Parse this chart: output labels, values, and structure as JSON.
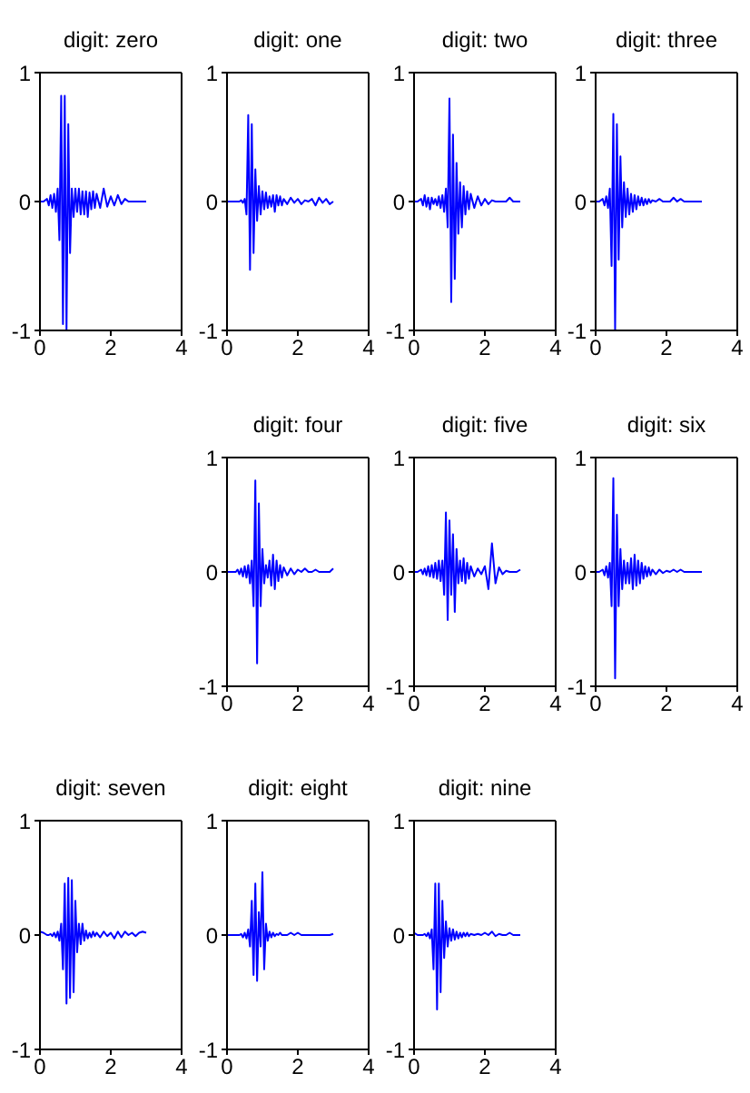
{
  "chart_data": [
    {
      "type": "line",
      "title": "digit: zero",
      "color": "#0000ff",
      "marker": "none",
      "xlim": [
        0,
        4
      ],
      "xticks": [
        0,
        2,
        4
      ],
      "ylim": [
        -1,
        1
      ],
      "yticks": [
        -1,
        0,
        1
      ],
      "x": [
        0,
        0.1,
        0.2,
        0.25,
        0.3,
        0.35,
        0.4,
        0.45,
        0.5,
        0.55,
        0.6,
        0.65,
        0.7,
        0.75,
        0.8,
        0.85,
        0.9,
        0.95,
        1.0,
        1.05,
        1.1,
        1.15,
        1.2,
        1.25,
        1.3,
        1.35,
        1.4,
        1.45,
        1.5,
        1.55,
        1.6,
        1.7,
        1.8,
        1.9,
        2.0,
        2.1,
        2.2,
        2.3,
        2.4,
        2.5,
        2.6,
        2.7,
        2.8,
        2.9,
        3.0
      ],
      "values": [
        0,
        0,
        0.02,
        -0.03,
        0.05,
        -0.05,
        0.06,
        -0.08,
        0.1,
        -0.3,
        0.82,
        -0.95,
        0.82,
        -1,
        0.6,
        -0.4,
        0.1,
        -0.12,
        0.1,
        -0.08,
        0.1,
        -0.1,
        0.08,
        -0.1,
        0.08,
        -0.12,
        0.07,
        -0.06,
        0.08,
        -0.05,
        0.06,
        -0.05,
        0.1,
        -0.04,
        0.04,
        -0.03,
        0.05,
        -0.02,
        0.02,
        0,
        0,
        0,
        0,
        0,
        0
      ]
    },
    {
      "type": "line",
      "title": "digit: one",
      "color": "#0000ff",
      "marker": "none",
      "xlim": [
        0,
        4
      ],
      "xticks": [
        0,
        2,
        4
      ],
      "ylim": [
        -1,
        1
      ],
      "yticks": [
        -1,
        0,
        1
      ],
      "x": [
        0,
        0.1,
        0.2,
        0.25,
        0.3,
        0.35,
        0.4,
        0.45,
        0.5,
        0.55,
        0.6,
        0.65,
        0.7,
        0.75,
        0.8,
        0.85,
        0.9,
        0.95,
        1.0,
        1.05,
        1.1,
        1.15,
        1.2,
        1.25,
        1.3,
        1.35,
        1.4,
        1.45,
        1.5,
        1.55,
        1.6,
        1.7,
        1.8,
        1.9,
        2.0,
        2.1,
        2.2,
        2.3,
        2.4,
        2.5,
        2.6,
        2.7,
        2.8,
        2.9,
        3.0
      ],
      "values": [
        0,
        0,
        0,
        0,
        0,
        0,
        0.01,
        -0.01,
        0.02,
        -0.1,
        0.67,
        -0.53,
        0.6,
        -0.4,
        0.25,
        -0.15,
        0.12,
        -0.1,
        0.08,
        -0.06,
        0.07,
        -0.05,
        0.04,
        -0.04,
        0.05,
        -0.08,
        0.05,
        -0.03,
        0.04,
        -0.03,
        0.02,
        -0.02,
        0.03,
        -0.01,
        0.02,
        -0.02,
        0.01,
        0,
        0.02,
        -0.03,
        0.03,
        -0.01,
        0.02,
        -0.02,
        0
      ]
    },
    {
      "type": "line",
      "title": "digit: two",
      "color": "#0000ff",
      "marker": "none",
      "xlim": [
        0,
        4
      ],
      "xticks": [
        0,
        2,
        4
      ],
      "ylim": [
        -1,
        1
      ],
      "yticks": [
        -1,
        0,
        1
      ],
      "x": [
        0,
        0.1,
        0.2,
        0.25,
        0.3,
        0.35,
        0.4,
        0.45,
        0.5,
        0.55,
        0.6,
        0.65,
        0.7,
        0.75,
        0.8,
        0.85,
        0.9,
        0.95,
        1.0,
        1.05,
        1.1,
        1.15,
        1.2,
        1.25,
        1.3,
        1.35,
        1.4,
        1.45,
        1.5,
        1.55,
        1.6,
        1.7,
        1.8,
        1.9,
        2.0,
        2.1,
        2.2,
        2.3,
        2.4,
        2.5,
        2.6,
        2.7,
        2.8,
        2.9,
        3.0
      ],
      "values": [
        0,
        0,
        0.02,
        -0.03,
        0.05,
        -0.04,
        0.03,
        -0.06,
        0.03,
        -0.02,
        0.02,
        -0.03,
        0.04,
        -0.05,
        0.05,
        -0.08,
        0.1,
        -0.2,
        0.8,
        -0.78,
        0.52,
        -0.6,
        0.3,
        -0.25,
        0.15,
        -0.2,
        0.12,
        -0.1,
        0.08,
        -0.06,
        0.06,
        -0.05,
        0.04,
        -0.03,
        0.02,
        -0.02,
        0.01,
        0,
        0,
        0,
        0,
        0.03,
        0,
        0,
        0
      ]
    },
    {
      "type": "line",
      "title": "digit: three",
      "color": "#0000ff",
      "marker": "none",
      "xlim": [
        0,
        4
      ],
      "xticks": [
        0,
        2,
        4
      ],
      "ylim": [
        -1,
        1
      ],
      "yticks": [
        -1,
        0,
        1
      ],
      "x": [
        0,
        0.1,
        0.2,
        0.25,
        0.3,
        0.35,
        0.4,
        0.45,
        0.5,
        0.55,
        0.6,
        0.65,
        0.7,
        0.75,
        0.8,
        0.85,
        0.9,
        0.95,
        1.0,
        1.05,
        1.1,
        1.15,
        1.2,
        1.25,
        1.3,
        1.35,
        1.4,
        1.45,
        1.5,
        1.55,
        1.6,
        1.7,
        1.8,
        1.9,
        2.0,
        2.1,
        2.2,
        2.3,
        2.4,
        2.5,
        2.6,
        2.7,
        2.8,
        2.9,
        3.0
      ],
      "values": [
        0,
        0,
        0.02,
        -0.03,
        0.04,
        -0.05,
        0.1,
        -0.5,
        0.68,
        -1,
        0.6,
        -0.45,
        0.35,
        -0.2,
        0.15,
        -0.12,
        0.1,
        -0.1,
        0.06,
        -0.08,
        0.05,
        -0.06,
        0.04,
        -0.03,
        0.03,
        -0.03,
        0.02,
        -0.02,
        0.02,
        -0.01,
        0.01,
        0,
        0.02,
        0,
        0,
        0,
        0.03,
        0,
        0.02,
        0,
        0,
        0,
        0,
        0,
        0
      ]
    },
    {
      "type": "line",
      "title": "digit: four",
      "color": "#0000ff",
      "marker": "none",
      "xlim": [
        0,
        4
      ],
      "xticks": [
        0,
        2,
        4
      ],
      "ylim": [
        -1,
        1
      ],
      "yticks": [
        -1,
        0,
        1
      ],
      "x": [
        0,
        0.1,
        0.2,
        0.25,
        0.3,
        0.35,
        0.4,
        0.45,
        0.5,
        0.55,
        0.6,
        0.65,
        0.7,
        0.75,
        0.8,
        0.85,
        0.9,
        0.95,
        1.0,
        1.05,
        1.1,
        1.15,
        1.2,
        1.25,
        1.3,
        1.35,
        1.4,
        1.45,
        1.5,
        1.55,
        1.6,
        1.7,
        1.8,
        1.9,
        2.0,
        2.1,
        2.2,
        2.3,
        2.4,
        2.5,
        2.6,
        2.7,
        2.8,
        2.9,
        3.0
      ],
      "values": [
        0,
        0,
        0,
        0,
        0.02,
        -0.02,
        0.03,
        -0.04,
        0.05,
        -0.05,
        0.06,
        -0.1,
        0.1,
        -0.3,
        0.8,
        -0.8,
        0.6,
        -0.3,
        0.2,
        -0.1,
        0.06,
        -0.05,
        0.1,
        -0.12,
        0.15,
        -0.15,
        0.1,
        -0.08,
        0.06,
        -0.05,
        0.04,
        -0.03,
        0.03,
        -0.02,
        0.02,
        0,
        0.03,
        0,
        0,
        0.02,
        0,
        0,
        0,
        0,
        0.03
      ]
    },
    {
      "type": "line",
      "title": "digit: five",
      "color": "#0000ff",
      "marker": "none",
      "xlim": [
        0,
        4
      ],
      "xticks": [
        0,
        2,
        4
      ],
      "ylim": [
        -1,
        1
      ],
      "yticks": [
        -1,
        0,
        1
      ],
      "x": [
        0,
        0.1,
        0.2,
        0.25,
        0.3,
        0.35,
        0.4,
        0.45,
        0.5,
        0.55,
        0.6,
        0.65,
        0.7,
        0.75,
        0.8,
        0.85,
        0.9,
        0.95,
        1.0,
        1.05,
        1.1,
        1.15,
        1.2,
        1.25,
        1.3,
        1.35,
        1.4,
        1.45,
        1.5,
        1.55,
        1.6,
        1.7,
        1.8,
        1.9,
        2.0,
        2.1,
        2.2,
        2.3,
        2.4,
        2.5,
        2.6,
        2.7,
        2.8,
        2.9,
        3.0
      ],
      "values": [
        0,
        0,
        0.02,
        -0.02,
        0.03,
        -0.03,
        0.05,
        -0.04,
        0.06,
        -0.05,
        0.08,
        -0.06,
        0.1,
        -0.08,
        0.1,
        -0.2,
        0.52,
        -0.42,
        0.45,
        -0.2,
        0.33,
        -0.35,
        0.2,
        -0.1,
        0.1,
        -0.08,
        0.12,
        -0.1,
        0.08,
        -0.06,
        0.05,
        -0.04,
        0.03,
        -0.02,
        0.05,
        -0.15,
        0.25,
        -0.1,
        0.04,
        -0.02,
        0.01,
        0,
        0,
        0,
        0.02
      ]
    },
    {
      "type": "line",
      "title": "digit: six",
      "color": "#0000ff",
      "marker": "none",
      "xlim": [
        0,
        4
      ],
      "xticks": [
        0,
        2,
        4
      ],
      "ylim": [
        -1,
        1
      ],
      "yticks": [
        -1,
        0,
        1
      ],
      "x": [
        0,
        0.1,
        0.2,
        0.25,
        0.3,
        0.35,
        0.4,
        0.45,
        0.5,
        0.55,
        0.6,
        0.65,
        0.7,
        0.75,
        0.8,
        0.85,
        0.9,
        0.95,
        1.0,
        1.05,
        1.1,
        1.15,
        1.2,
        1.25,
        1.3,
        1.35,
        1.4,
        1.45,
        1.5,
        1.55,
        1.6,
        1.7,
        1.8,
        1.9,
        2.0,
        2.1,
        2.2,
        2.3,
        2.4,
        2.5,
        2.6,
        2.7,
        2.8,
        2.9,
        3.0
      ],
      "values": [
        0,
        0,
        0.02,
        -0.03,
        0.05,
        -0.05,
        0.08,
        -0.3,
        0.82,
        -0.93,
        0.5,
        -0.3,
        0.2,
        -0.15,
        0.1,
        -0.1,
        0.08,
        -0.1,
        0.12,
        -0.15,
        0.15,
        -0.12,
        0.1,
        -0.1,
        0.08,
        -0.06,
        0.05,
        -0.04,
        0.04,
        -0.03,
        0.02,
        -0.02,
        0.02,
        -0.01,
        0.01,
        0,
        0.02,
        0,
        0.02,
        0,
        0,
        0,
        0,
        0,
        0
      ]
    },
    {
      "type": "line",
      "title": "digit: seven",
      "color": "#0000ff",
      "marker": "none",
      "xlim": [
        0,
        4
      ],
      "xticks": [
        0,
        2,
        4
      ],
      "ylim": [
        -1,
        1
      ],
      "yticks": [
        -1,
        0,
        1
      ],
      "x": [
        0,
        0.1,
        0.2,
        0.25,
        0.3,
        0.35,
        0.4,
        0.45,
        0.5,
        0.55,
        0.6,
        0.65,
        0.7,
        0.75,
        0.8,
        0.85,
        0.9,
        0.95,
        1.0,
        1.05,
        1.1,
        1.15,
        1.2,
        1.25,
        1.3,
        1.35,
        1.4,
        1.45,
        1.5,
        1.55,
        1.6,
        1.7,
        1.8,
        1.9,
        2.0,
        2.1,
        2.2,
        2.3,
        2.4,
        2.5,
        2.6,
        2.7,
        2.8,
        2.9,
        3.0
      ],
      "values": [
        0.03,
        0.02,
        0,
        0,
        0.01,
        -0.01,
        0.02,
        -0.02,
        0.03,
        -0.05,
        0.1,
        -0.3,
        0.45,
        -0.6,
        0.5,
        -0.55,
        0.48,
        -0.5,
        0.3,
        -0.15,
        0.1,
        -0.08,
        0.1,
        -0.05,
        0.04,
        -0.03,
        0.02,
        -0.02,
        0.03,
        -0.01,
        0.02,
        -0.02,
        0.03,
        -0.01,
        0.02,
        -0.03,
        0.03,
        -0.02,
        0.03,
        0,
        0.02,
        -0.01,
        0.02,
        0.03,
        0.02
      ]
    },
    {
      "type": "line",
      "title": "digit: eight",
      "color": "#0000ff",
      "marker": "none",
      "xlim": [
        0,
        4
      ],
      "xticks": [
        0,
        2,
        4
      ],
      "ylim": [
        -1,
        1
      ],
      "yticks": [
        -1,
        0,
        1
      ],
      "x": [
        0,
        0.1,
        0.2,
        0.25,
        0.3,
        0.35,
        0.4,
        0.45,
        0.5,
        0.55,
        0.6,
        0.65,
        0.7,
        0.75,
        0.8,
        0.85,
        0.9,
        0.95,
        1.0,
        1.05,
        1.1,
        1.15,
        1.2,
        1.25,
        1.3,
        1.35,
        1.4,
        1.45,
        1.5,
        1.55,
        1.6,
        1.7,
        1.8,
        1.9,
        2.0,
        2.1,
        2.2,
        2.3,
        2.4,
        2.5,
        2.6,
        2.7,
        2.8,
        2.9,
        3.0
      ],
      "values": [
        0,
        0,
        0,
        0,
        0,
        0,
        0.01,
        -0.02,
        0.02,
        -0.03,
        0.05,
        -0.1,
        0.3,
        -0.35,
        0.45,
        -0.4,
        0.2,
        -0.1,
        0.55,
        -0.3,
        0.1,
        -0.05,
        0.03,
        -0.02,
        0.02,
        -0.01,
        0.01,
        0,
        0.02,
        0,
        0,
        0,
        0.02,
        0,
        0.02,
        0,
        0,
        0,
        0,
        0,
        0,
        0,
        0,
        0,
        0.01
      ]
    },
    {
      "type": "line",
      "title": "digit: nine",
      "color": "#0000ff",
      "marker": "none",
      "xlim": [
        0,
        4
      ],
      "xticks": [
        0,
        2,
        4
      ],
      "ylim": [
        -1,
        1
      ],
      "yticks": [
        -1,
        0,
        1
      ],
      "x": [
        0,
        0.1,
        0.2,
        0.25,
        0.3,
        0.35,
        0.4,
        0.45,
        0.5,
        0.55,
        0.6,
        0.65,
        0.7,
        0.75,
        0.8,
        0.85,
        0.9,
        0.95,
        1.0,
        1.05,
        1.1,
        1.15,
        1.2,
        1.25,
        1.3,
        1.35,
        1.4,
        1.45,
        1.5,
        1.55,
        1.6,
        1.7,
        1.8,
        1.9,
        2.0,
        2.1,
        2.2,
        2.3,
        2.4,
        2.5,
        2.6,
        2.7,
        2.8,
        2.9,
        3.0
      ],
      "values": [
        0.02,
        0,
        0,
        0,
        0.01,
        -0.01,
        0.02,
        -0.03,
        0.05,
        -0.3,
        0.45,
        -0.65,
        0.45,
        -0.5,
        0.3,
        -0.2,
        0.12,
        -0.1,
        0.06,
        -0.05,
        0.05,
        -0.04,
        0.03,
        -0.03,
        0.02,
        -0.02,
        0.02,
        -0.01,
        0.02,
        -0.01,
        0.01,
        0,
        0.01,
        0,
        0.02,
        0,
        0.03,
        -0.01,
        0.01,
        0,
        0,
        0.02,
        0,
        0,
        0
      ]
    }
  ]
}
